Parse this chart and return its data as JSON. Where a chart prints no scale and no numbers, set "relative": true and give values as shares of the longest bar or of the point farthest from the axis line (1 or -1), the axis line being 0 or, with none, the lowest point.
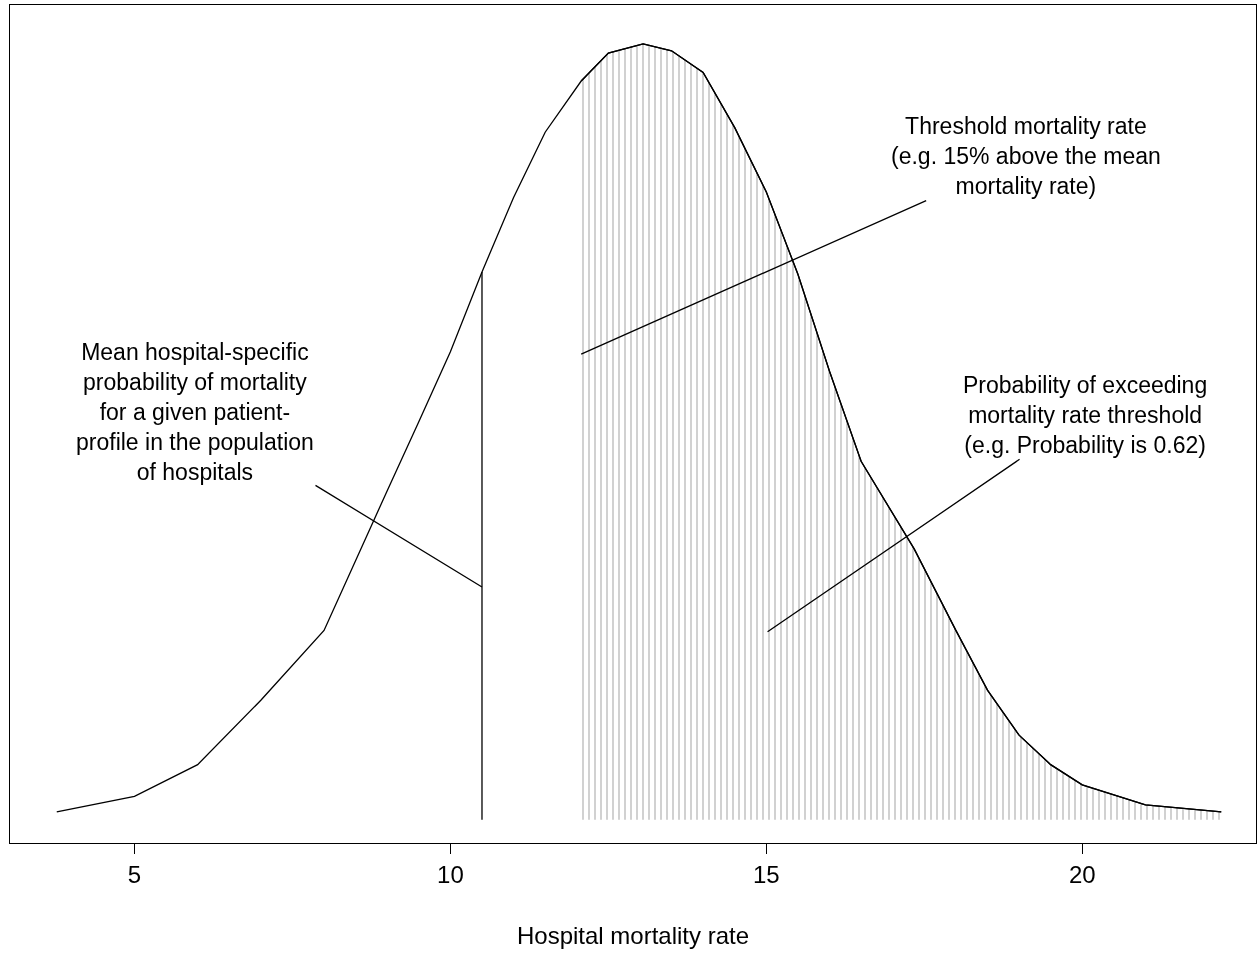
{
  "chart_data": {
    "type": "line",
    "relative": true,
    "xlabel": "Hospital mortality rate",
    "xlim": [
      3.03,
      22.75
    ],
    "xticks": [
      5,
      10,
      15,
      20
    ],
    "series": [
      {
        "color": "#000000",
        "x": [
          3.77,
          5,
          6,
          7,
          8,
          9,
          9.5,
          10,
          10.5,
          11,
          11.5,
          12.07,
          12.5,
          13.05,
          13.5,
          14,
          14.5,
          15,
          15.5,
          16,
          16.5,
          17.34,
          18,
          18.5,
          19,
          19.5,
          20,
          21,
          22.2
        ],
        "values": [
          0.01,
          0.03,
          0.071,
          0.154,
          0.244,
          0.424,
          0.513,
          0.603,
          0.706,
          0.802,
          0.886,
          0.952,
          0.988,
          1.0,
          0.991,
          0.963,
          0.892,
          0.809,
          0.703,
          0.578,
          0.462,
          0.349,
          0.244,
          0.167,
          0.109,
          0.071,
          0.045,
          0.019,
          0.01
        ]
      },
      {
        "type": "area",
        "color": "#000000",
        "x": [
          12.07,
          12.5,
          13.05,
          13.5,
          14,
          14.5,
          15,
          15.5,
          16,
          16.5,
          17.34,
          18,
          18.5,
          19,
          19.5,
          20,
          21,
          22.2
        ],
        "values": [
          0.952,
          0.988,
          1.0,
          0.991,
          0.963,
          0.892,
          0.809,
          0.703,
          0.578,
          0.462,
          0.349,
          0.244,
          0.167,
          0.109,
          0.071,
          0.045,
          0.019,
          0.01
        ]
      },
      {
        "type": "line",
        "color": "#000000",
        "x": [
          10.5,
          10.5
        ],
        "values": [
          0,
          0.706
        ]
      }
    ],
    "annotations": [
      {
        "text": "Mean hospital-specific\nprobability of mortality\nfor a given patient-\nprofile in the population\nof hospitals",
        "x": 10.5,
        "y": 0.3
      },
      {
        "text": "Threshold mortality rate\n(e.g. 15% above the mean\nmortality rate)",
        "x": 12.07,
        "y": 0.6
      },
      "Probability of exceeding\nmortality rate threshold\n(e.g. Probability is 0.62)"
    ]
  }
}
